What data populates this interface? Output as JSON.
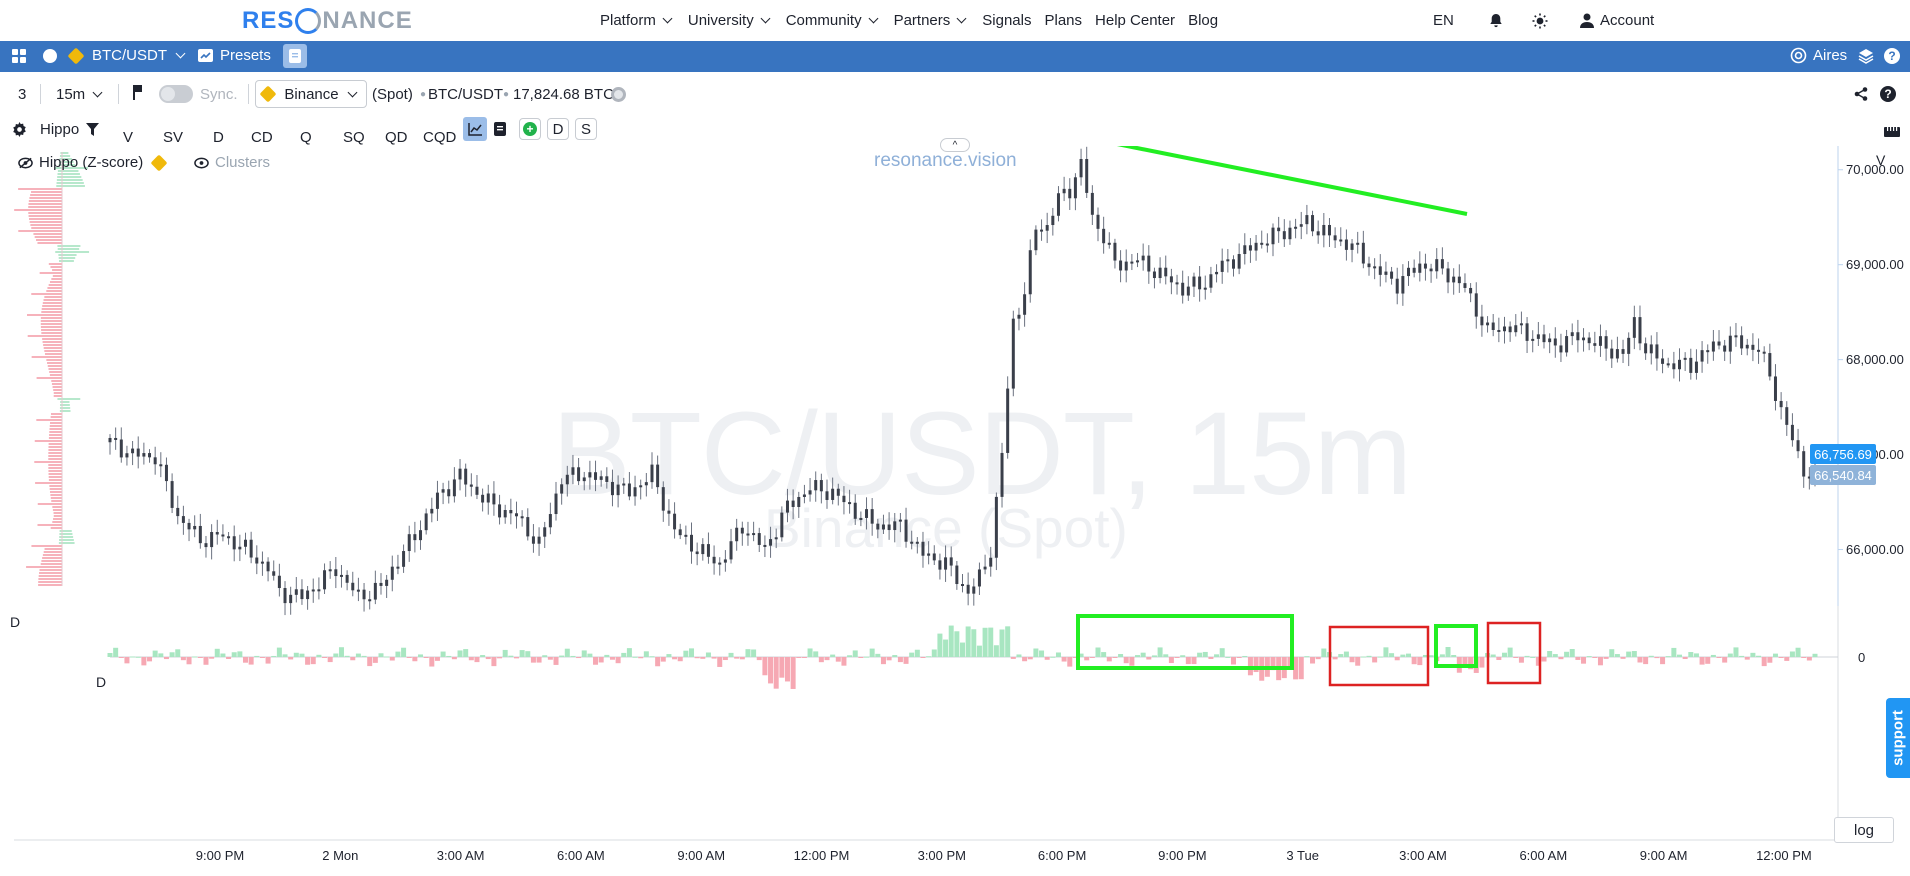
{
  "site_nav": {
    "logo": {
      "part1": "RES",
      "part2": "NANCE"
    },
    "menu": [
      {
        "label": "Platform",
        "dropdown": true
      },
      {
        "label": "University",
        "dropdown": true
      },
      {
        "label": "Community",
        "dropdown": true
      },
      {
        "label": "Partners",
        "dropdown": true
      },
      {
        "label": "Signals",
        "dropdown": false
      },
      {
        "label": "Plans",
        "dropdown": false
      },
      {
        "label": "Help Center",
        "dropdown": false
      },
      {
        "label": "Blog",
        "dropdown": false
      }
    ],
    "language": "EN",
    "account": "Account",
    "icons": [
      "bell-icon",
      "sun-icon",
      "user-icon"
    ]
  },
  "app_bar": {
    "symbol": "BTC/USDT",
    "presets": "Presets",
    "user": "Aires",
    "bg_color": "#3874c0"
  },
  "toolbar1": {
    "layout_count": "3",
    "timeframe": "15m",
    "sync": "Sync.",
    "exchange": "Binance",
    "market": "(Spot)",
    "symbol": "BTC/USDT",
    "volume": "17,824.68 BTC"
  },
  "toolbar2": {
    "indicator": "Hippo",
    "buttons": [
      "V",
      "SV",
      "D",
      "CD",
      "Q",
      "SQ",
      "QD",
      "CQD"
    ],
    "extra": [
      "D",
      "S"
    ]
  },
  "chart": {
    "legend_indicator": "Hippo (Z-score)",
    "legend_clusters": "Clusters",
    "brand": "resonance.vision",
    "watermark_title": "BTC/USDT, 15m",
    "watermark_sub": "Binance (Spot)",
    "pane_label_top": "V",
    "pane_label_d1": "D",
    "pane_label_d2": "D",
    "zero_label": "0",
    "support": "support",
    "log_button": "log",
    "last_price": "66,756.69",
    "second_price": "66,540.84",
    "last_price_color": "#2196f3",
    "second_price_color": "#8fb3d9"
  },
  "chart_data": {
    "type": "candlestick",
    "title": "BTC/USDT, 15m",
    "subtitle": "Binance (Spot)",
    "y_ticks": [
      "70,000.00",
      "69,000.00",
      "68,000.00",
      "67,000.00",
      "66,000.00"
    ],
    "y_tick_values": [
      70000,
      69000,
      68000,
      67000,
      66000
    ],
    "ylim": [
      65300,
      70250
    ],
    "x_ticks": [
      "9:00 PM",
      "2 Mon",
      "3:00 AM",
      "6:00 AM",
      "9:00 AM",
      "12:00 PM",
      "3:00 PM",
      "6:00 PM",
      "9:00 PM",
      "3 Tue",
      "3:00 AM",
      "6:00 AM",
      "9:00 AM",
      "12:00 PM"
    ],
    "price_path": [
      [
        0,
        67130
      ],
      [
        4,
        67000
      ],
      [
        8,
        66980
      ],
      [
        12,
        66350
      ],
      [
        16,
        66100
      ],
      [
        20,
        66150
      ],
      [
        24,
        66000
      ],
      [
        28,
        65800
      ],
      [
        30,
        65550
      ],
      [
        34,
        65500
      ],
      [
        38,
        65700
      ],
      [
        40,
        65800
      ],
      [
        44,
        65500
      ],
      [
        48,
        65600
      ],
      [
        50,
        65800
      ],
      [
        54,
        66150
      ],
      [
        58,
        66550
      ],
      [
        62,
        66780
      ],
      [
        64,
        66650
      ],
      [
        68,
        66450
      ],
      [
        72,
        66350
      ],
      [
        76,
        66050
      ],
      [
        80,
        66750
      ],
      [
        84,
        66800
      ],
      [
        88,
        66700
      ],
      [
        92,
        66600
      ],
      [
        96,
        66800
      ],
      [
        100,
        66200
      ],
      [
        104,
        66000
      ],
      [
        108,
        65850
      ],
      [
        112,
        66250
      ],
      [
        116,
        66000
      ],
      [
        120,
        66450
      ],
      [
        124,
        66650
      ],
      [
        128,
        66600
      ],
      [
        132,
        66400
      ],
      [
        136,
        66250
      ],
      [
        140,
        66250
      ],
      [
        144,
        65950
      ],
      [
        148,
        65850
      ],
      [
        150,
        65700
      ],
      [
        152,
        65550
      ],
      [
        154,
        65700
      ],
      [
        156,
        66000
      ],
      [
        158,
        67000
      ],
      [
        160,
        68400
      ],
      [
        162,
        68700
      ],
      [
        164,
        69400
      ],
      [
        166,
        69400
      ],
      [
        168,
        69700
      ],
      [
        170,
        69800
      ],
      [
        172,
        70050
      ],
      [
        174,
        69500
      ],
      [
        176,
        69300
      ],
      [
        178,
        69000
      ],
      [
        182,
        69050
      ],
      [
        186,
        68900
      ],
      [
        190,
        68750
      ],
      [
        194,
        68800
      ],
      [
        196,
        68950
      ],
      [
        200,
        69100
      ],
      [
        204,
        69250
      ],
      [
        208,
        69350
      ],
      [
        212,
        69450
      ],
      [
        216,
        69300
      ],
      [
        220,
        69200
      ],
      [
        224,
        68950
      ],
      [
        228,
        68800
      ],
      [
        232,
        69000
      ],
      [
        236,
        68950
      ],
      [
        240,
        68750
      ],
      [
        244,
        68300
      ],
      [
        248,
        68350
      ],
      [
        252,
        68250
      ],
      [
        256,
        68150
      ],
      [
        260,
        68250
      ],
      [
        264,
        68150
      ],
      [
        268,
        68050
      ],
      [
        270,
        68400
      ],
      [
        272,
        68100
      ],
      [
        276,
        67950
      ],
      [
        280,
        67950
      ],
      [
        284,
        68150
      ],
      [
        288,
        68200
      ],
      [
        292,
        68100
      ],
      [
        294,
        67850
      ],
      [
        296,
        67450
      ],
      [
        298,
        67150
      ],
      [
        300,
        66850
      ],
      [
        302,
        66700
      ]
    ],
    "delta_bars_note": "Lower pane: per-bar delta histogram, green positive, red negative, zero line labeled 0",
    "annotations": [
      {
        "type": "trendline",
        "color": "#22ee22"
      },
      {
        "type": "box",
        "color": "#22ee22"
      },
      {
        "type": "box",
        "color": "#dd2222"
      },
      {
        "type": "box",
        "color": "#22ee22"
      },
      {
        "type": "box",
        "color": "#dd2222"
      }
    ],
    "grid": false,
    "legend_position": "top-left"
  }
}
